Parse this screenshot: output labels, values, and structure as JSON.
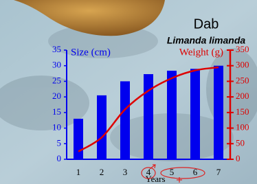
{
  "chart_data": {
    "type": "bar-line",
    "title": "Dab",
    "subtitle": "Limanda limanda",
    "xlabel": "Years",
    "categories": [
      "1",
      "2",
      "3",
      "4",
      "5",
      "6",
      "7"
    ],
    "series": [
      {
        "name": "Size (cm)",
        "type": "bar",
        "color": "#0000ee",
        "values": [
          13,
          20.5,
          25,
          27.3,
          28.4,
          29,
          30
        ]
      },
      {
        "name": "Weight (g)",
        "type": "line",
        "color": "#dd0000",
        "axis": "y2",
        "values": [
          25,
          70,
          160,
          220,
          260,
          285,
          295
        ]
      }
    ],
    "ylim": [
      0,
      35
    ],
    "yticks": [
      0,
      5,
      10,
      15,
      20,
      25,
      30,
      35
    ],
    "y2lim": [
      0,
      350
    ],
    "y2ticks": [
      0,
      50,
      100,
      150,
      200,
      250,
      300,
      350
    ]
  }
}
